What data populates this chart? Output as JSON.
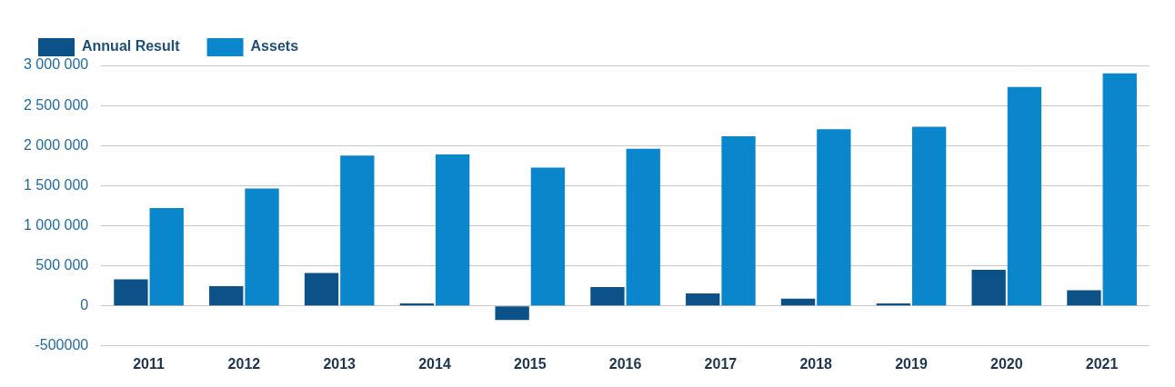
{
  "chart_data": {
    "type": "bar",
    "categories": [
      "2011",
      "2012",
      "2013",
      "2014",
      "2015",
      "2016",
      "2017",
      "2018",
      "2019",
      "2020",
      "2021"
    ],
    "series": [
      {
        "name": "Annual Result",
        "color": "#0d5189",
        "values": [
          330000,
          245000,
          410000,
          30000,
          -175000,
          235000,
          155000,
          90000,
          30000,
          450000,
          195000
        ]
      },
      {
        "name": "Assets",
        "color": "#0a87cc",
        "values": [
          1220000,
          1465000,
          1875000,
          1890000,
          1725000,
          1960000,
          2115000,
          2205000,
          2235000,
          2730000,
          2900000
        ]
      }
    ],
    "ylim": [
      -500000,
      3000000
    ],
    "yticks": [
      {
        "value": -500000,
        "label": "-500000"
      },
      {
        "value": 0,
        "label": "0"
      },
      {
        "value": 500000,
        "label": "500 000"
      },
      {
        "value": 1000000,
        "label": "1 000 000"
      },
      {
        "value": 1500000,
        "label": "1 500 000"
      },
      {
        "value": 2000000,
        "label": "2 000 000"
      },
      {
        "value": 2500000,
        "label": "2 500 000"
      },
      {
        "value": 3000000,
        "label": "3 000 000"
      }
    ],
    "grid": "y",
    "legend": "top left"
  }
}
